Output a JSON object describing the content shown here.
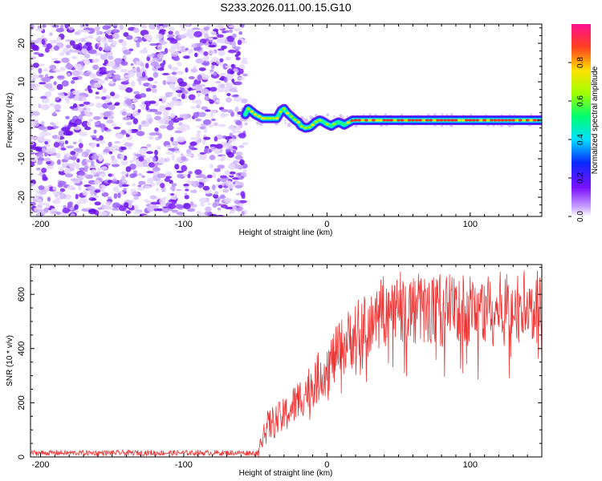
{
  "title": "S233.2026.011.00.15.G10",
  "chart_data": [
    {
      "type": "heatmap",
      "xlabel": "Height of straight line (km)",
      "ylabel": "Frequency (Hz)",
      "xlim": [
        -207,
        150
      ],
      "ylim": [
        -25,
        25
      ],
      "xticks": [
        -200,
        -100,
        0,
        100
      ],
      "yticks": [
        -20,
        -10,
        0,
        10,
        20
      ],
      "noise_region_x": [
        -207,
        -57
      ],
      "signal_ridge": {
        "x": [
          -57,
          -55,
          -50,
          -45,
          -40,
          -35,
          -32,
          -30,
          -28,
          -25,
          -22,
          -20,
          -18,
          -15,
          -12,
          -10,
          -8,
          -5,
          -3,
          0,
          3,
          5,
          8,
          10,
          12,
          15,
          18,
          20,
          25,
          30,
          35,
          40,
          45,
          50,
          55,
          60,
          70,
          80,
          90,
          100,
          110,
          120,
          130,
          140,
          150
        ],
        "y": [
          1.5,
          3,
          1.5,
          0.5,
          0.5,
          0.5,
          2.5,
          3,
          2,
          1,
          0,
          -0.5,
          -1.5,
          -2,
          -1.8,
          -1.2,
          -0.5,
          0,
          -0.3,
          -1,
          -1.5,
          -1,
          -0.5,
          -0.8,
          -1.2,
          -0.6,
          0,
          0,
          0,
          0,
          0,
          0,
          0,
          0,
          0,
          0,
          0,
          0,
          0,
          0,
          0,
          0,
          0,
          0,
          0
        ]
      },
      "colorbar": {
        "label": "Normalized spectral amplitude",
        "range": [
          0,
          1
        ],
        "ticks": [
          "0.0",
          "0.2",
          "0.4",
          "0.6",
          "0.8"
        ]
      }
    },
    {
      "type": "line",
      "xlabel": "Height of straight line (km)",
      "ylabel": "SNR (10 * v/v)",
      "xlim": [
        -207,
        150
      ],
      "ylim": [
        0,
        710
      ],
      "xticks": [
        -200,
        -100,
        0,
        100
      ],
      "yticks": [
        0,
        200,
        400,
        600
      ],
      "color": "#ee3333",
      "series": {
        "name": "SNR",
        "x": [
          -207,
          -150,
          -100,
          -60,
          -47,
          -45,
          -40,
          -30,
          -20,
          -10,
          0,
          10,
          20,
          30,
          40,
          50,
          60,
          70,
          80,
          90,
          100,
          110,
          120,
          130,
          140,
          150
        ],
        "y": [
          15,
          15,
          15,
          15,
          15,
          90,
          120,
          150,
          210,
          270,
          330,
          400,
          460,
          510,
          540,
          550,
          545,
          540,
          545,
          540,
          545,
          545,
          545,
          550,
          550,
          550
        ]
      }
    }
  ]
}
